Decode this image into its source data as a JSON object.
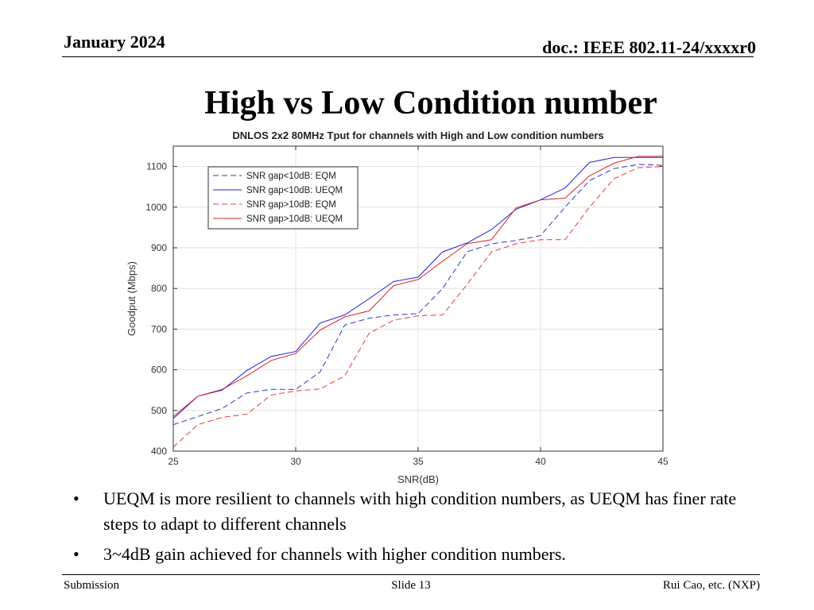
{
  "header": {
    "date": "January 2024",
    "doc": "doc.: IEEE 802.11-24/xxxxr0"
  },
  "slide": {
    "title": "High vs Low Condition number"
  },
  "bullets": [
    "UEQM is more resilient to channels with high condition numbers, as UEQM has finer rate steps to adapt to different channels",
    "3~4dB gain achieved for channels with higher condition numbers."
  ],
  "bullet_symbol": "•",
  "footer": {
    "left": "Submission",
    "center": "Slide 13",
    "right": "Rui Cao, etc. (NXP)"
  },
  "chart_data": {
    "type": "line",
    "title": "DNLOS 2x2 80MHz Tput for channels with High and Low condition numbers",
    "xlabel": "SNR(dB)",
    "ylabel": "Goodput (Mbps)",
    "xlim": [
      25,
      45
    ],
    "ylim": [
      400,
      1150
    ],
    "xticks": [
      25,
      30,
      35,
      40,
      45
    ],
    "yticks": [
      400,
      500,
      600,
      700,
      800,
      900,
      1000,
      1100
    ],
    "grid": true,
    "legend_position": "top-left",
    "x": [
      25,
      26,
      27,
      28,
      29,
      30,
      31,
      32,
      33,
      34,
      35,
      36,
      37,
      38,
      39,
      40,
      41,
      42,
      43,
      44,
      45
    ],
    "series": [
      {
        "name": "SNR gap<10dB: EQM",
        "color": "#3333cc",
        "dash": "dashed",
        "values": [
          465,
          485,
          505,
          543,
          552,
          552,
          595,
          710,
          727,
          735,
          738,
          800,
          890,
          910,
          918,
          930,
          1000,
          1065,
          1095,
          1105,
          1103
        ]
      },
      {
        "name": "SNR gap<10dB: UEQM",
        "color": "#2222dd",
        "dash": "solid",
        "values": [
          480,
          535,
          550,
          598,
          633,
          645,
          715,
          735,
          775,
          817,
          828,
          890,
          912,
          945,
          995,
          1018,
          1047,
          1110,
          1122,
          1122,
          1122
        ]
      },
      {
        "name": "SNR gap>10dB: EQM",
        "color": "#e23b3b",
        "dash": "dashed",
        "values": [
          410,
          465,
          483,
          491,
          538,
          548,
          553,
          585,
          690,
          722,
          733,
          735,
          810,
          890,
          910,
          920,
          920,
          1000,
          1070,
          1097,
          1100
        ]
      },
      {
        "name": "SNR gap>10dB: UEQM",
        "color": "#dd2222",
        "dash": "solid",
        "values": [
          485,
          535,
          552,
          585,
          623,
          640,
          698,
          730,
          745,
          807,
          822,
          867,
          910,
          920,
          998,
          1018,
          1022,
          1077,
          1108,
          1125,
          1125
        ]
      }
    ]
  }
}
